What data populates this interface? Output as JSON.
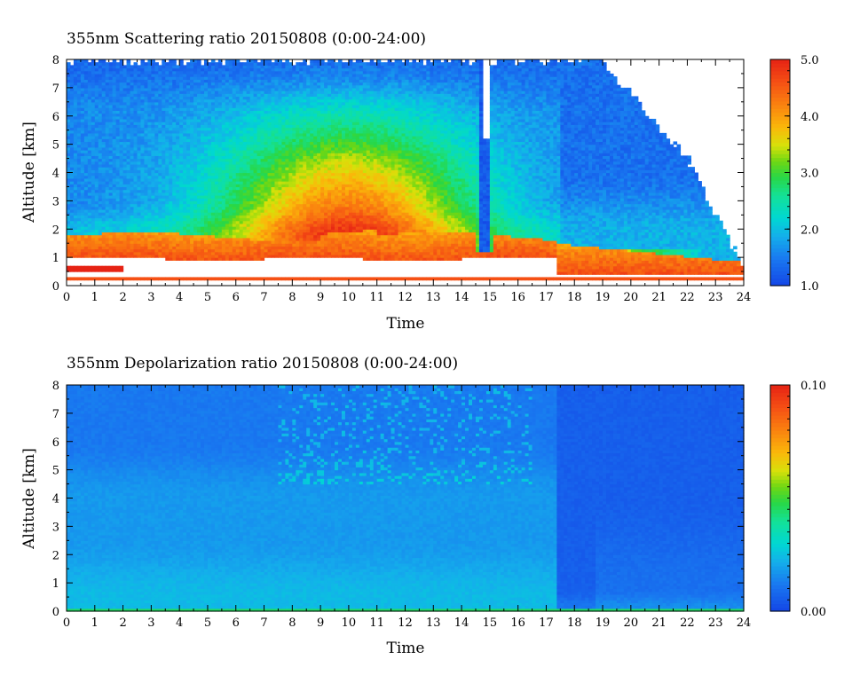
{
  "chart_data": [
    {
      "type": "heatmap",
      "title": "355nm Scattering ratio  20150808 (0:00-24:00)",
      "xlabel": "Time",
      "ylabel": "Altitude [km]",
      "xlim": [
        0,
        24
      ],
      "ylim": [
        0,
        8
      ],
      "x_ticks": [
        0,
        1,
        2,
        3,
        4,
        5,
        6,
        7,
        8,
        9,
        10,
        11,
        12,
        13,
        14,
        15,
        16,
        17,
        18,
        19,
        20,
        21,
        22,
        23,
        24
      ],
      "y_ticks": [
        0,
        1,
        2,
        3,
        4,
        5,
        6,
        7,
        8
      ],
      "colorbar": {
        "min": 1.0,
        "max": 5.0,
        "ticks": [
          "1.0",
          "2.0",
          "3.0",
          "4.0",
          "5.0"
        ]
      },
      "features": [
        "aerosol layer of ratio >4 between about 0.9 and 1.8 km from 0:00 to 17:30",
        "green/yellow region (ratio 2.5-3.5) centered around 9-11 h at 2-5 km",
        "dip to about 1 km near 14.8 h with clear column above",
        "high-ratio layer near 0.5-1.2 km from 18 to 22 h",
        "no data above a ceiling descending from 8 km at 19 h to ~0.5 km at 24 h"
      ]
    },
    {
      "type": "heatmap",
      "title": "355nm Depolarization ratio  20150808 (0:00-24:00)",
      "xlabel": "Time",
      "ylabel": "Altitude [km]",
      "xlim": [
        0,
        24
      ],
      "ylim": [
        0,
        8
      ],
      "x_ticks": [
        0,
        1,
        2,
        3,
        4,
        5,
        6,
        7,
        8,
        9,
        10,
        11,
        12,
        13,
        14,
        15,
        16,
        17,
        18,
        19,
        20,
        21,
        22,
        23,
        24
      ],
      "y_ticks": [
        0,
        1,
        2,
        3,
        4,
        5,
        6,
        7,
        8
      ],
      "colorbar": {
        "min": 0.0,
        "max": 0.1,
        "ticks": [
          "0.00",
          "0.10"
        ]
      },
      "features": [
        "low values (~0.01-0.02) throughout",
        "slightly higher (~0.025) below 1 km and at surface",
        "noisy speckle above 5 km between 8 and 16 h",
        "lowest values (~0.005) from 17.5 to 24 h"
      ]
    }
  ]
}
